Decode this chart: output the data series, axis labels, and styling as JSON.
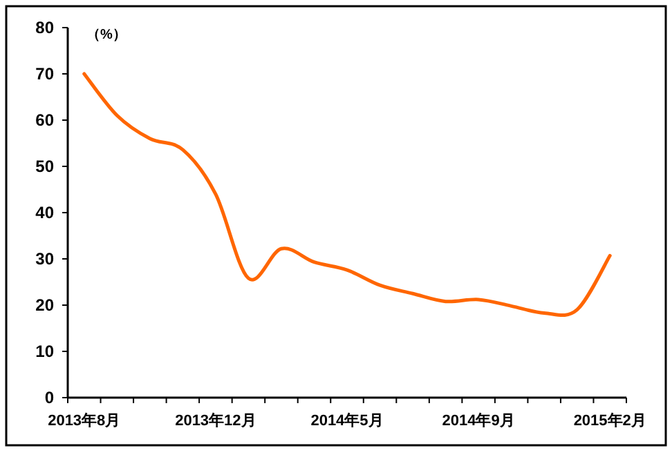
{
  "chart_data": {
    "type": "line",
    "ylabel": "（%）",
    "categories": [
      "2013年8月",
      null,
      null,
      null,
      "2013年12月",
      null,
      null,
      null,
      "2014年5月",
      null,
      null,
      null,
      "2014年9月",
      null,
      null,
      null,
      "2015年2月"
    ],
    "series": [
      {
        "color": "#ff6600",
        "values": [
          70,
          61,
          56,
          53.6,
          44,
          25.8,
          32.2,
          29.3,
          27.6,
          24.3,
          22.5,
          20.8,
          21.2,
          19.8,
          18.3,
          19,
          30.7
        ]
      }
    ],
    "ylim": [
      0,
      80
    ],
    "yticks": [
      0,
      10,
      20,
      30,
      40,
      50,
      60,
      70,
      80
    ]
  }
}
